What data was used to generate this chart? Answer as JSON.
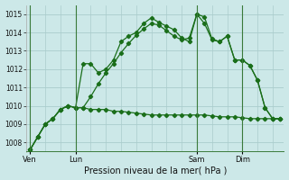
{
  "background_color": "#cce8e8",
  "grid_color": "#aacccc",
  "line_color": "#1a6e1a",
  "title": "Pression niveau de la mer( hPa )",
  "ylim": [
    1007.5,
    1015.5
  ],
  "yticks": [
    1008,
    1009,
    1010,
    1011,
    1012,
    1013,
    1014,
    1015
  ],
  "day_labels": [
    "Ven",
    "Lun",
    "Sam",
    "Dim"
  ],
  "day_positions": [
    0,
    6,
    22,
    28
  ],
  "xlim": [
    -0.5,
    33.5
  ],
  "line1": [
    1007.6,
    1008.3,
    1009.0,
    1009.3,
    1009.8,
    1010.0,
    1009.9,
    1009.9,
    1009.8,
    1009.8,
    1009.8,
    1009.7,
    1009.7,
    1009.65,
    1009.6,
    1009.55,
    1009.5,
    1009.5,
    1009.5,
    1009.5,
    1009.5,
    1009.5,
    1009.5,
    1009.5,
    1009.45,
    1009.4,
    1009.4,
    1009.4,
    1009.35,
    1009.3,
    1009.3,
    1009.3,
    1009.3,
    1009.3
  ],
  "line2": [
    1007.6,
    1008.3,
    1009.0,
    1009.3,
    1009.8,
    1010.0,
    1009.9,
    1012.3,
    1012.3,
    1011.8,
    1012.0,
    1012.5,
    1013.5,
    1013.8,
    1014.0,
    1014.5,
    1014.8,
    1014.55,
    1014.35,
    1014.15,
    1013.7,
    1013.5,
    1015.0,
    1014.85,
    1013.65,
    1013.5,
    1013.8,
    1012.5,
    1012.5,
    1012.2,
    1011.4,
    1009.9,
    1009.3,
    1009.3
  ],
  "line3": [
    1007.6,
    1008.3,
    1009.0,
    1009.3,
    1009.8,
    1010.0,
    1009.9,
    1009.9,
    1010.5,
    1011.2,
    1011.8,
    1012.3,
    1012.9,
    1013.4,
    1013.85,
    1014.2,
    1014.5,
    1014.4,
    1014.1,
    1013.8,
    1013.6,
    1013.7,
    1015.0,
    1014.5,
    1013.6,
    1013.5,
    1013.8,
    1012.5,
    1012.5,
    1012.2,
    1011.4,
    1009.9,
    1009.3,
    1009.3
  ]
}
